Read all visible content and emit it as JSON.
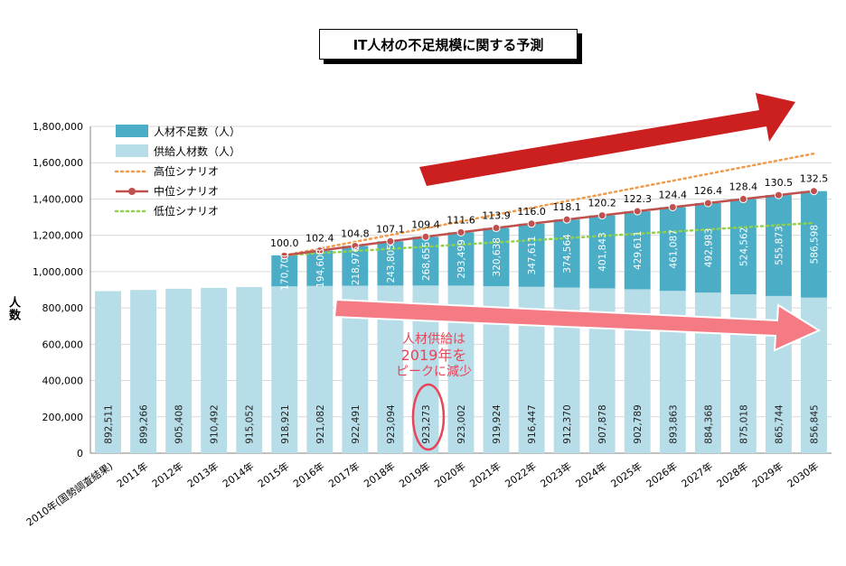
{
  "title": "IT人材の不足規模に関する予測",
  "chart_data": {
    "type": "bar",
    "title": "IT人材の不足規模に関する予測",
    "ylabel": "人数",
    "ylim": [
      0,
      1800000
    ],
    "yticks": [
      "0",
      "200,000",
      "400,000",
      "600,000",
      "800,000",
      "1,000,000",
      "1,200,000",
      "1,400,000",
      "1,600,000",
      "1,800,000"
    ],
    "categories": [
      "2010年(国勢調査結果)",
      "2011年",
      "2012年",
      "2013年",
      "2014年",
      "2015年",
      "2016年",
      "2017年",
      "2018年",
      "2019年",
      "2020年",
      "2021年",
      "2022年",
      "2023年",
      "2024年",
      "2025年",
      "2026年",
      "2027年",
      "2028年",
      "2029年",
      "2030年"
    ],
    "supply": [
      892511,
      899266,
      905408,
      910492,
      915052,
      918921,
      921082,
      922491,
      923094,
      923273,
      923002,
      919924,
      916447,
      912370,
      907878,
      902789,
      893863,
      884368,
      875018,
      865744,
      856845
    ],
    "supply_labels": [
      "892,511",
      "899,266",
      "905,408",
      "910,492",
      "915,052",
      "918,921",
      "921,082",
      "922,491",
      "923,094",
      "923,273",
      "923,002",
      "919,924",
      "916,447",
      "912,370",
      "907,878",
      "902,789",
      "893,863",
      "884,368",
      "875,018",
      "865,744",
      "856,845"
    ],
    "shortage": [
      null,
      null,
      null,
      null,
      null,
      170700,
      194608,
      218976,
      243805,
      268655,
      293499,
      320638,
      347611,
      374564,
      401843,
      429611,
      461087,
      492983,
      524562,
      555873,
      586598
    ],
    "shortage_labels": [
      null,
      null,
      null,
      null,
      null,
      "170,700",
      "194,608",
      "218,976",
      "243,805",
      "268,655",
      "293,499",
      "320,638",
      "347,611",
      "374,564",
      "401,843",
      "429,611",
      "461,087",
      "492,983",
      "524,562",
      "555,873",
      "586,598"
    ],
    "mid_index_labels": [
      "100.0",
      "102.4",
      "104.8",
      "107.1",
      "109.4",
      "111.6",
      "113.9",
      "116.0",
      "118.1",
      "120.2",
      "122.3",
      "124.4",
      "126.4",
      "128.4",
      "130.5",
      "132.5"
    ],
    "scenario_lines": {
      "high": {
        "start": [
          2015,
          1089621
        ],
        "end": [
          2030,
          1650000
        ]
      },
      "mid": {
        "start": [
          2015,
          1089621
        ],
        "end": [
          2030,
          1443443
        ]
      },
      "low": {
        "start": [
          2015,
          1089621
        ],
        "end": [
          2030,
          1268000
        ]
      }
    },
    "legend": {
      "placement": "top-left",
      "items": [
        {
          "label": "人材不足数（人）",
          "kind": "bar",
          "color": "#4badc6"
        },
        {
          "label": "供給人材数（人）",
          "kind": "bar",
          "color": "#b7dde8"
        },
        {
          "label": "高位シナリオ",
          "kind": "dotted",
          "color": "#f09a4a"
        },
        {
          "label": "中位シナリオ",
          "kind": "line-marker",
          "color": "#c0504d"
        },
        {
          "label": "低位シナリオ",
          "kind": "dotted",
          "color": "#8fd14f"
        }
      ]
    },
    "colors": {
      "shortage": "#4badc6",
      "supply": "#b7dde8",
      "high": "#f09a4a",
      "mid": "#c0504d",
      "low": "#8fd14f",
      "arrow_up": "#cc1f1f",
      "arrow_down": "#f47a84",
      "annotation": "#e8455a"
    },
    "annotation": {
      "lines": [
        "人材供給は",
        "2019年を",
        "ピークに減少"
      ],
      "highlight_category": "2019年"
    }
  }
}
